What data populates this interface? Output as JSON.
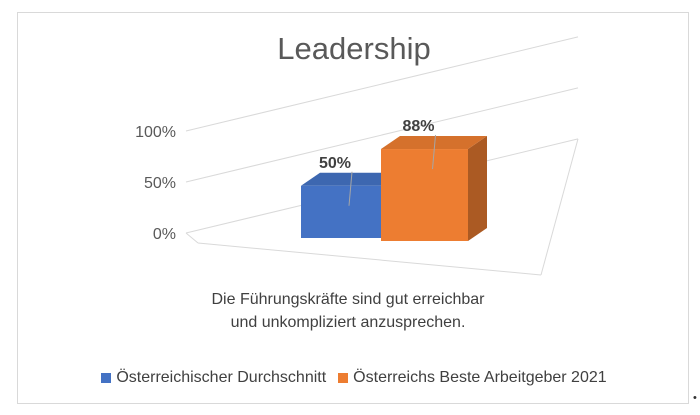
{
  "chart_data": {
    "type": "bar",
    "title": "Leadership",
    "categories": [
      "Die Führungskräfte sind gut erreichbar und unkompliziert anzusprechen."
    ],
    "category_lines": [
      "Die Führungskräfte sind gut erreichbar",
      "und unkompliziert anzusprechen."
    ],
    "series": [
      {
        "name": "Österreichischer Durchschnitt",
        "values": [
          50
        ],
        "label": "50%",
        "color": "#4472c4"
      },
      {
        "name": "Österreichs Beste Arbeitgeber 2021",
        "values": [
          88
        ],
        "label": "88%",
        "color": "#ed7d31"
      }
    ],
    "yticks": [
      "0%",
      "50%",
      "100%"
    ],
    "ylim": [
      0,
      100
    ],
    "grid": true,
    "style": "3d-clustered-column",
    "legend_position": "bottom"
  },
  "stray_mark": "•"
}
